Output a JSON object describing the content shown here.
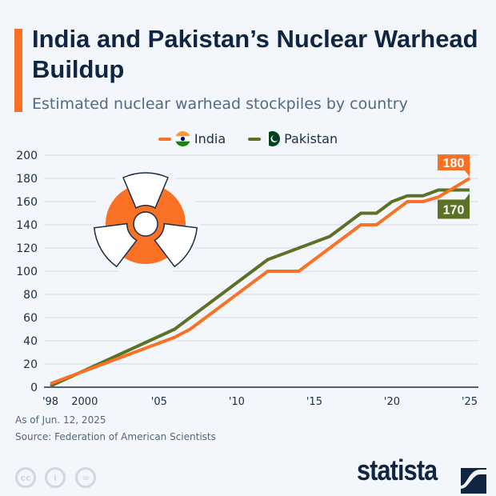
{
  "header": {
    "title": "India and Pakistan’s Nuclear Warhead Buildup",
    "subtitle": "Estimated nuclear warhead stockpiles by country"
  },
  "footer": {
    "date_note": "As of Jun. 12, 2025",
    "source": "Source: Federation of American Scientists",
    "brand": "statista",
    "license_icons": [
      "cc-icon",
      "by-icon",
      "nd-icon"
    ]
  },
  "colors": {
    "India": "#f97125",
    "Pakistan": "#5b7226",
    "accent": "#f97125",
    "title": "#0f2541"
  },
  "chart_data": {
    "type": "line",
    "title": "India and Pakistan’s Nuclear Warhead Buildup",
    "subtitle": "Estimated nuclear warhead stockpiles by country",
    "xlim": [
      1998,
      2025
    ],
    "ylim": [
      0,
      200
    ],
    "yticks": [
      0,
      20,
      40,
      60,
      80,
      100,
      120,
      140,
      160,
      180,
      200
    ],
    "xticks": [
      {
        "value": 1998,
        "label": "'98"
      },
      {
        "value": 2000,
        "label": "2000"
      },
      {
        "value": 2005,
        "label": "'05"
      },
      {
        "value": 2010,
        "label": "'10"
      },
      {
        "value": 2015,
        "label": "'15"
      },
      {
        "value": 2020,
        "label": "'20"
      },
      {
        "value": 2025,
        "label": "'25"
      }
    ],
    "grid": true,
    "legend": "top-center",
    "series": [
      {
        "name": "India",
        "color": "#f97125",
        "points": [
          [
            1998,
            3
          ],
          [
            2006,
            43
          ],
          [
            2007,
            50
          ],
          [
            2012,
            100
          ],
          [
            2014,
            100
          ],
          [
            2018,
            140
          ],
          [
            2019,
            140
          ],
          [
            2021,
            160
          ],
          [
            2022,
            160
          ],
          [
            2023,
            164
          ],
          [
            2025,
            180
          ]
        ],
        "end_label": "180"
      },
      {
        "name": "Pakistan",
        "color": "#5b7226",
        "points": [
          [
            1998,
            1
          ],
          [
            2006,
            50
          ],
          [
            2012,
            110
          ],
          [
            2016,
            130
          ],
          [
            2018,
            150
          ],
          [
            2019,
            150
          ],
          [
            2020,
            160
          ],
          [
            2021,
            165
          ],
          [
            2022,
            165
          ],
          [
            2023,
            170
          ],
          [
            2025,
            170
          ]
        ],
        "end_label": "170"
      }
    ]
  }
}
